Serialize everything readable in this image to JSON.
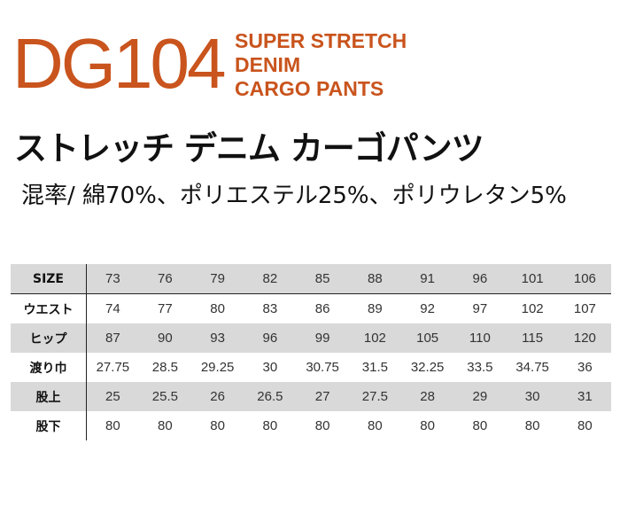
{
  "product": {
    "code": "DG104",
    "english_name": [
      "SUPER STRETCH",
      "DENIM",
      "CARGO PANTS"
    ],
    "japanese_name": "ストレッチ デニム カーゴパンツ",
    "composition": "混率/  綿70%、ポリエステル25%、ポリウレタン5%",
    "accent_color": "#c9541d"
  },
  "size_table": {
    "rows": [
      {
        "label": "SIZE",
        "values": [
          "73",
          "76",
          "79",
          "82",
          "85",
          "88",
          "91",
          "96",
          "101",
          "106"
        ]
      },
      {
        "label": "ウエスト",
        "values": [
          "74",
          "77",
          "80",
          "83",
          "86",
          "89",
          "92",
          "97",
          "102",
          "107"
        ]
      },
      {
        "label": "ヒップ",
        "values": [
          "87",
          "90",
          "93",
          "96",
          "99",
          "102",
          "105",
          "110",
          "115",
          "120"
        ]
      },
      {
        "label": "渡り巾",
        "values": [
          "27.75",
          "28.5",
          "29.25",
          "30",
          "30.75",
          "31.5",
          "32.25",
          "33.5",
          "34.75",
          "36"
        ]
      },
      {
        "label": "股上",
        "values": [
          "25",
          "25.5",
          "26",
          "26.5",
          "27",
          "27.5",
          "28",
          "29",
          "30",
          "31"
        ]
      },
      {
        "label": "股下",
        "values": [
          "80",
          "80",
          "80",
          "80",
          "80",
          "80",
          "80",
          "80",
          "80",
          "80"
        ]
      }
    ]
  }
}
